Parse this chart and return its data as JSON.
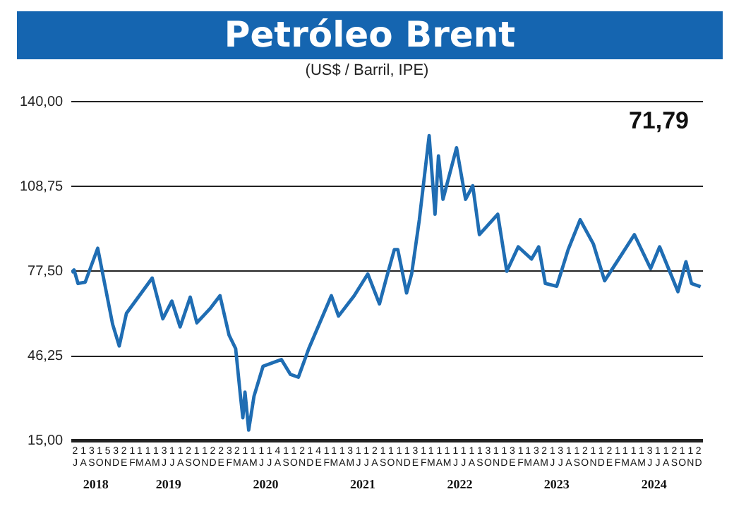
{
  "chart_data": {
    "type": "line",
    "title": "Petróleo Brent",
    "subtitle": "(US$ / Barril, IPE)",
    "annotations": [
      "71,79"
    ],
    "x": [
      "2018-07-01",
      "2018-07-11",
      "2018-07-26",
      "2018-08-22",
      "2018-10-08",
      "2018-12-03",
      "2018-12-28",
      "2019-01-24",
      "2019-05-01",
      "2019-06-10",
      "2019-07-14",
      "2019-08-14",
      "2019-09-21",
      "2019-10-16",
      "2019-12-07",
      "2020-01-11",
      "2020-02-14",
      "2020-03-10",
      "2020-03-27",
      "2020-04-06",
      "2020-04-14",
      "2020-04-28",
      "2020-05-18",
      "2020-06-21",
      "2020-08-29",
      "2020-10-02",
      "2020-11-01",
      "2020-12-10",
      "2021-03-05",
      "2021-04-01",
      "2021-05-30",
      "2021-07-20",
      "2021-09-02",
      "2021-09-28",
      "2021-10-28",
      "2021-11-10",
      "2021-12-13",
      "2022-01-01",
      "2022-01-30",
      "2022-03-08",
      "2022-03-30",
      "2022-04-12",
      "2022-04-29",
      "2022-06-19",
      "2022-07-23",
      "2022-08-19",
      "2022-09-13",
      "2022-11-21",
      "2022-12-25",
      "2023-02-06",
      "2023-03-28",
      "2023-04-24",
      "2023-05-19",
      "2023-07-01",
      "2023-08-13",
      "2023-09-27",
      "2023-11-16",
      "2023-12-28",
      "2024-02-19",
      "2024-04-18",
      "2024-06-18",
      "2024-07-22",
      "2024-09-29",
      "2024-10-29",
      "2024-11-19",
      "2024-12-23"
    ],
    "series": [
      {
        "color": "#1f6db3",
        "values": [
          77,
          78,
          73,
          73.5,
          86,
          58,
          50,
          62,
          75,
          60,
          66.5,
          57,
          68,
          58.5,
          64,
          68.5,
          54,
          49,
          32.5,
          23.5,
          33,
          19,
          31.5,
          42.5,
          45,
          39.5,
          38.5,
          49,
          68.5,
          61,
          68.5,
          76.5,
          65.5,
          75,
          85.5,
          85.5,
          69.5,
          76.5,
          96.5,
          127.5,
          98.5,
          120,
          104,
          123,
          104,
          109,
          91,
          98.5,
          77.5,
          86.5,
          82,
          86.5,
          73,
          72,
          85.5,
          96.5,
          87.5,
          74,
          82,
          91,
          78.5,
          86.5,
          70,
          81,
          73,
          71.79
        ]
      }
    ],
    "xlim": [
      "2018-07-01",
      "2025-01-01"
    ],
    "xticks": [
      {
        "value": "2018-07-15",
        "label": "2\nJ"
      },
      {
        "value": "2018-08-15",
        "label": "1\nA"
      },
      {
        "value": "2018-09-15",
        "label": "3\nS"
      },
      {
        "value": "2018-10-15",
        "label": "1\nO"
      },
      {
        "value": "2018-11-15",
        "label": "5\nN"
      },
      {
        "value": "2018-12-15",
        "label": "3\nD"
      },
      {
        "value": "2019-01-15",
        "label": "2\nE"
      },
      {
        "value": "2019-02-15",
        "label": "1\nF"
      },
      {
        "value": "2019-03-15",
        "label": "1\nM"
      },
      {
        "value": "2019-04-15",
        "label": "1\nA"
      },
      {
        "value": "2019-05-15",
        "label": "1\nM"
      },
      {
        "value": "2019-06-15",
        "label": "3\nJ"
      },
      {
        "value": "2019-07-15",
        "label": "1\nJ"
      },
      {
        "value": "2019-08-15",
        "label": "1\nA"
      },
      {
        "value": "2019-09-15",
        "label": "2\nS"
      },
      {
        "value": "2019-10-15",
        "label": "1\nO"
      },
      {
        "value": "2019-11-15",
        "label": "1\nN"
      },
      {
        "value": "2019-12-15",
        "label": "2\nD"
      },
      {
        "value": "2020-01-15",
        "label": "2\nE"
      },
      {
        "value": "2020-02-15",
        "label": "3\nF"
      },
      {
        "value": "2020-03-15",
        "label": "2\nM"
      },
      {
        "value": "2020-04-15",
        "label": "1\nA"
      },
      {
        "value": "2020-05-15",
        "label": "1\nM"
      },
      {
        "value": "2020-06-15",
        "label": "1\nJ"
      },
      {
        "value": "2020-07-15",
        "label": "1\nJ"
      },
      {
        "value": "2020-08-15",
        "label": "4\nA"
      },
      {
        "value": "2020-09-15",
        "label": "1\nS"
      },
      {
        "value": "2020-10-15",
        "label": "1\nO"
      },
      {
        "value": "2020-11-15",
        "label": "2\nN"
      },
      {
        "value": "2020-12-15",
        "label": "1\nD"
      },
      {
        "value": "2021-01-15",
        "label": "4\nE"
      },
      {
        "value": "2021-02-15",
        "label": "1\nF"
      },
      {
        "value": "2021-03-15",
        "label": "1\nM"
      },
      {
        "value": "2021-04-15",
        "label": "1\nA"
      },
      {
        "value": "2021-05-15",
        "label": "3\nM"
      },
      {
        "value": "2021-06-15",
        "label": "1\nJ"
      },
      {
        "value": "2021-07-15",
        "label": "1\nJ"
      },
      {
        "value": "2021-08-15",
        "label": "2\nA"
      },
      {
        "value": "2021-09-15",
        "label": "1\nS"
      },
      {
        "value": "2021-10-15",
        "label": "1\nO"
      },
      {
        "value": "2021-11-15",
        "label": "1\nN"
      },
      {
        "value": "2021-12-15",
        "label": "1\nD"
      },
      {
        "value": "2022-01-15",
        "label": "3\nE"
      },
      {
        "value": "2022-02-15",
        "label": "1\nF"
      },
      {
        "value": "2022-03-15",
        "label": "1\nM"
      },
      {
        "value": "2022-04-15",
        "label": "1\nA"
      },
      {
        "value": "2022-05-15",
        "label": "1\nM"
      },
      {
        "value": "2022-06-15",
        "label": "1\nJ"
      },
      {
        "value": "2022-07-15",
        "label": "1\nJ"
      },
      {
        "value": "2022-08-15",
        "label": "1\nA"
      },
      {
        "value": "2022-09-15",
        "label": "1\nS"
      },
      {
        "value": "2022-10-15",
        "label": "3\nO"
      },
      {
        "value": "2022-11-15",
        "label": "1\nN"
      },
      {
        "value": "2022-12-15",
        "label": "1\nD"
      },
      {
        "value": "2023-01-15",
        "label": "3\nE"
      },
      {
        "value": "2023-02-15",
        "label": "1\nF"
      },
      {
        "value": "2023-03-15",
        "label": "1\nM"
      },
      {
        "value": "2023-04-15",
        "label": "3\nA"
      },
      {
        "value": "2023-05-15",
        "label": "2\nM"
      },
      {
        "value": "2023-06-15",
        "label": "1\nJ"
      },
      {
        "value": "2023-07-15",
        "label": "3\nJ"
      },
      {
        "value": "2023-08-15",
        "label": "1\nA"
      },
      {
        "value": "2023-09-15",
        "label": "1\nS"
      },
      {
        "value": "2023-10-15",
        "label": "2\nO"
      },
      {
        "value": "2023-11-15",
        "label": "1\nN"
      },
      {
        "value": "2023-12-15",
        "label": "1\nD"
      },
      {
        "value": "2024-01-15",
        "label": "2\nE"
      },
      {
        "value": "2024-02-15",
        "label": "1\nF"
      },
      {
        "value": "2024-03-15",
        "label": "1\nM"
      },
      {
        "value": "2024-04-15",
        "label": "1\nA"
      },
      {
        "value": "2024-05-15",
        "label": "1\nM"
      },
      {
        "value": "2024-06-15",
        "label": "3\nJ"
      },
      {
        "value": "2024-07-15",
        "label": "1\nJ"
      },
      {
        "value": "2024-08-15",
        "label": "1\nA"
      },
      {
        "value": "2024-09-15",
        "label": "2\nS"
      },
      {
        "value": "2024-10-15",
        "label": "1\nO"
      },
      {
        "value": "2024-11-15",
        "label": "1\nN"
      },
      {
        "value": "2024-12-15",
        "label": "2\nD"
      }
    ],
    "x2lim": [
      "2018-07-01",
      "2025-01-01"
    ],
    "x2ticks": [
      {
        "value": "2018-10-01",
        "label": "2018"
      },
      {
        "value": "2019-07-01",
        "label": "2019"
      },
      {
        "value": "2020-07-01",
        "label": "2020"
      },
      {
        "value": "2021-07-01",
        "label": "2021"
      },
      {
        "value": "2022-07-01",
        "label": "2022"
      },
      {
        "value": "2023-07-01",
        "label": "2023"
      },
      {
        "value": "2024-07-01",
        "label": "2024"
      }
    ],
    "ylim": [
      15,
      140
    ],
    "yticks": [
      {
        "value": 15,
        "label": "15,00"
      },
      {
        "value": 46.25,
        "label": "46,25"
      },
      {
        "value": 77.5,
        "label": "77,50"
      },
      {
        "value": 108.75,
        "label": "108,75"
      },
      {
        "value": 140,
        "label": "140,00"
      }
    ],
    "grid": "y",
    "legend": false,
    "marker": "none",
    "line_style": "solid"
  }
}
